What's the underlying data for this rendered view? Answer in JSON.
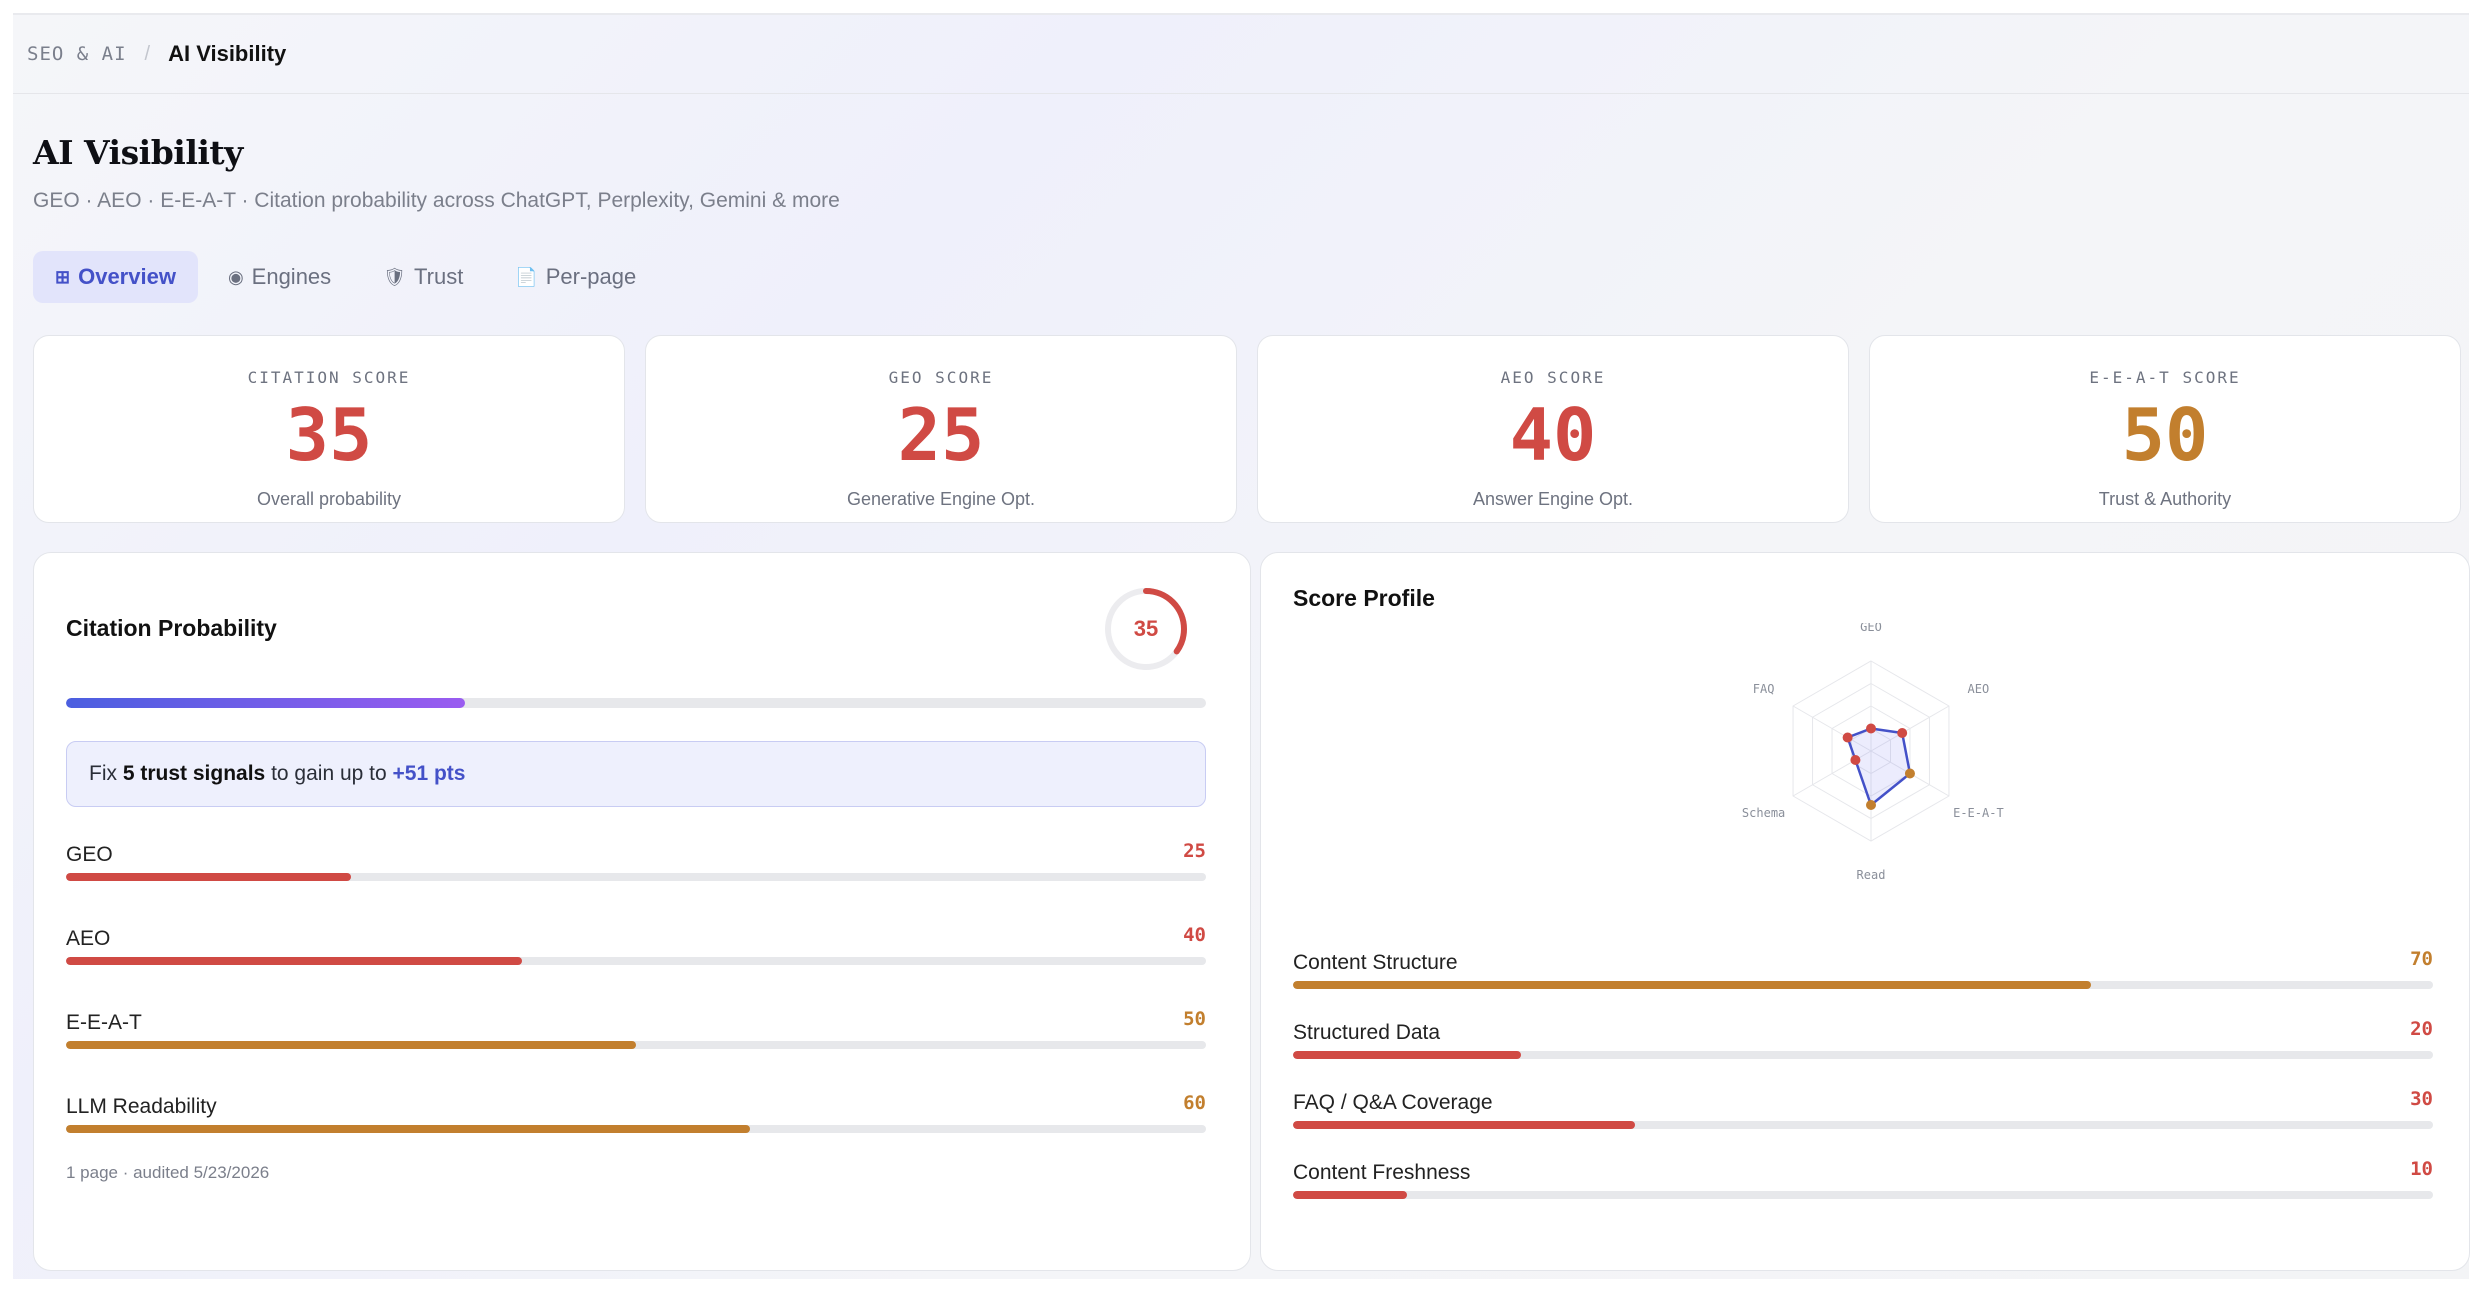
{
  "breadcrumb": {
    "root": "SEO & AI",
    "separator": "/",
    "current": "AI Visibility"
  },
  "page": {
    "title": "AI Visibility",
    "subtitle": "GEO · AEO · E-E-A-T · Citation probability across ChatGPT, Perplexity, Gemini & more"
  },
  "tabs": [
    {
      "label": "Overview",
      "icon": "grid-icon",
      "glyph": "⊞",
      "active": true
    },
    {
      "label": "Engines",
      "icon": "radio-icon",
      "glyph": "◉",
      "active": false
    },
    {
      "label": "Trust",
      "icon": "shield-icon",
      "glyph": "🛡",
      "active": false
    },
    {
      "label": "Per-page",
      "icon": "page-icon",
      "glyph": "📄",
      "active": false
    }
  ],
  "kpis": [
    {
      "label": "CITATION SCORE",
      "value": "35",
      "sub": "Overall probability",
      "color": "#d04a44"
    },
    {
      "label": "GEO SCORE",
      "value": "25",
      "sub": "Generative Engine Opt.",
      "color": "#d04a44"
    },
    {
      "label": "AEO SCORE",
      "value": "40",
      "sub": "Answer Engine Opt.",
      "color": "#d04a44"
    },
    {
      "label": "E-E-A-T SCORE",
      "value": "50",
      "sub": "Trust & Authority",
      "color": "#c27f2e"
    }
  ],
  "citation": {
    "title": "Citation Probability",
    "ring_value": "35",
    "progress": 35,
    "callout": {
      "prefix": "Fix",
      "bold": "5 trust signals",
      "middle": "to gain up to",
      "gain": "+51 pts"
    },
    "metrics": [
      {
        "label": "GEO",
        "value": "25",
        "pct": 25,
        "color": "#d04a44"
      },
      {
        "label": "AEO",
        "value": "40",
        "pct": 40,
        "color": "#d04a44"
      },
      {
        "label": "E-E-A-T",
        "value": "50",
        "pct": 50,
        "color": "#c27f2e"
      },
      {
        "label": "LLM Readability",
        "value": "60",
        "pct": 60,
        "color": "#c27f2e"
      }
    ],
    "footnote": "1 page · audited 5/23/2026"
  },
  "profile": {
    "title": "Score Profile",
    "radar_axes": [
      "GEO",
      "AEO",
      "E-E-A-T",
      "Read",
      "Schema",
      "FAQ"
    ],
    "radar_values": [
      25,
      40,
      50,
      60,
      20,
      30
    ],
    "metrics": [
      {
        "label": "Content Structure",
        "value": "70",
        "pct": 70,
        "color": "#c27f2e"
      },
      {
        "label": "Structured Data",
        "value": "20",
        "pct": 20,
        "color": "#d04a44"
      },
      {
        "label": "FAQ / Q&A Coverage",
        "value": "30",
        "pct": 30,
        "color": "#d04a44"
      },
      {
        "label": "Content Freshness",
        "value": "10",
        "pct": 10,
        "color": "#d04a44"
      }
    ]
  },
  "colors": {
    "accent": "#4451c8",
    "bad": "#d04a44",
    "warn": "#c27f2e"
  }
}
